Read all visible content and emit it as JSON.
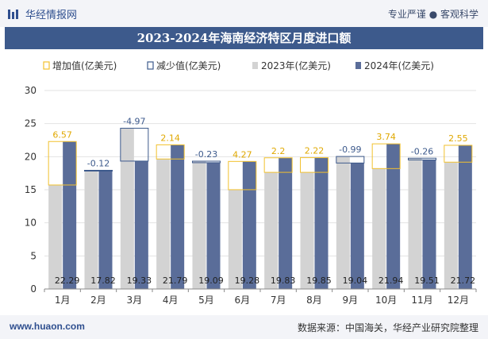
{
  "header": {
    "brand": "华经情报网",
    "tagline": "专业严谨 ● 客观科学"
  },
  "footer": {
    "site": "www.huaon.com",
    "source": "数据来源：中国海关，华经产业研究院整理"
  },
  "colors": {
    "bar_2023": "#d3d3d3",
    "bar_2024": "#5a6d99",
    "increase": "#f2c12e",
    "decrease": "#3d5a8c",
    "title_bg": "#3d5a8c"
  },
  "chart_data": {
    "type": "bar",
    "title": "2023-2024年海南经济特区月度进口额",
    "categories": [
      "1月",
      "2月",
      "3月",
      "4月",
      "5月",
      "6月",
      "7月",
      "8月",
      "9月",
      "10月",
      "11月",
      "12月"
    ],
    "series": [
      {
        "name": "2023年(亿美元)",
        "values": [
          15.72,
          17.94,
          24.3,
          19.65,
          19.32,
          15.01,
          17.63,
          17.63,
          20.03,
          18.2,
          19.77,
          19.17
        ]
      },
      {
        "name": "2024年(亿美元)",
        "values": [
          22.29,
          17.82,
          19.33,
          21.79,
          19.09,
          19.28,
          19.83,
          19.85,
          19.04,
          21.94,
          19.51,
          21.72
        ]
      }
    ],
    "change": [
      6.57,
      -0.12,
      -4.97,
      2.14,
      -0.23,
      4.27,
      2.2,
      2.22,
      -0.99,
      3.74,
      -0.26,
      2.55
    ],
    "change_labels": [
      "6.57",
      "-0.12",
      "-4.97",
      "2.14",
      "-0.23",
      "4.27",
      "2.2",
      "2.22",
      "-0.99",
      "3.74",
      "-0.26",
      "2.55"
    ],
    "value_labels": [
      "22.29",
      "17.82",
      "19.33",
      "21.79",
      "19.09",
      "19.28",
      "19.83",
      "19.85",
      "19.04",
      "21.94",
      "19.51",
      "21.72"
    ],
    "legend": [
      "增加值(亿美元)",
      "减少值(亿美元)",
      "2023年(亿美元)",
      "2024年(亿美元)"
    ],
    "legend_position": "top",
    "ylim": [
      0,
      30
    ],
    "yticks": [
      "0",
      "5",
      "10",
      "15",
      "20",
      "25",
      "30"
    ],
    "grid": true
  }
}
